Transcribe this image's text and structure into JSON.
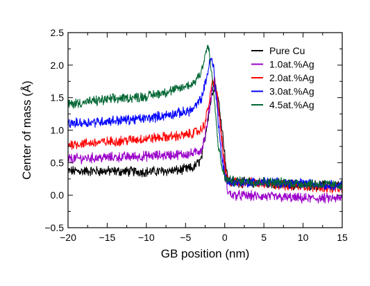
{
  "chart_data": {
    "type": "line",
    "xlabel": "GB position (nm)",
    "ylabel": "Center of mass (Å)",
    "xlim": [
      -20,
      15
    ],
    "ylim": [
      -0.5,
      2.5
    ],
    "x_ticks": [
      -20,
      -15,
      -10,
      -5,
      0,
      5,
      10,
      15
    ],
    "x_tick_labels": [
      "−20",
      "−15",
      "−10",
      "−5",
      "0",
      "5",
      "10",
      "15"
    ],
    "y_ticks": [
      -0.5,
      0.0,
      0.5,
      1.0,
      1.5,
      2.0,
      2.5
    ],
    "y_tick_labels": [
      "−0.5",
      "0.0",
      "0.5",
      "1.0",
      "1.5",
      "2.0",
      "2.5"
    ],
    "grid": false,
    "legend_position": "top-right",
    "series": [
      {
        "name": "Pure Cu",
        "color": "#000000",
        "x": [
          -20,
          -15,
          -10,
          -6,
          -4,
          -3,
          -2.5,
          -2,
          -1.5,
          -1.2,
          -0.8,
          -0.4,
          0,
          0.2,
          0.5,
          1,
          5,
          10,
          15
        ],
        "y": [
          0.37,
          0.37,
          0.36,
          0.38,
          0.42,
          0.55,
          0.9,
          1.3,
          1.62,
          1.7,
          1.45,
          1.1,
          0.65,
          0.38,
          0.22,
          0.2,
          0.19,
          0.15,
          0.15
        ]
      },
      {
        "name": "1.0at.%Ag",
        "color": "#9a00c9",
        "x": [
          -20,
          -15,
          -10,
          -5,
          -4,
          -3,
          -2.5,
          -2,
          -1.6,
          -1.3,
          -1,
          -0.6,
          -0.2,
          0.1,
          0.4,
          1,
          5,
          10,
          15
        ],
        "y": [
          0.56,
          0.58,
          0.6,
          0.63,
          0.64,
          0.7,
          0.9,
          1.3,
          1.65,
          1.72,
          1.5,
          1.1,
          0.6,
          0.25,
          0.05,
          0.0,
          -0.02,
          -0.05,
          -0.05
        ]
      },
      {
        "name": "2.0at.%Ag",
        "color": "#ff0000",
        "x": [
          -20,
          -15,
          -10,
          -5,
          -4,
          -3,
          -2.5,
          -2,
          -1.6,
          -1.3,
          -1,
          -0.6,
          -0.2,
          0.2,
          0.5,
          1,
          5,
          10,
          15
        ],
        "y": [
          0.78,
          0.82,
          0.87,
          0.92,
          0.96,
          1.0,
          1.12,
          1.42,
          1.72,
          1.78,
          1.55,
          1.15,
          0.65,
          0.3,
          0.22,
          0.2,
          0.18,
          0.14,
          0.1
        ]
      },
      {
        "name": "3.0at.%Ag",
        "color": "#0000ff",
        "x": [
          -20,
          -15,
          -10,
          -5,
          -4,
          -3,
          -2.5,
          -2,
          -1.7,
          -1.4,
          -1.1,
          -0.8,
          -0.4,
          0,
          0.4,
          1,
          5,
          10,
          15
        ],
        "y": [
          1.1,
          1.14,
          1.18,
          1.28,
          1.32,
          1.48,
          1.7,
          2.0,
          2.1,
          1.95,
          1.55,
          1.1,
          0.6,
          0.3,
          0.22,
          0.2,
          0.2,
          0.18,
          0.15
        ]
      },
      {
        "name": "4.5at.%Ag",
        "color": "#006633",
        "x": [
          -20,
          -15,
          -10,
          -6,
          -4,
          -3,
          -2.5,
          -2.2,
          -2,
          -1.7,
          -1.4,
          -1.1,
          -0.8,
          -0.4,
          0,
          0.4,
          1,
          5,
          10,
          15
        ],
        "y": [
          1.4,
          1.47,
          1.52,
          1.63,
          1.72,
          1.9,
          2.15,
          2.3,
          2.2,
          1.9,
          1.55,
          1.15,
          0.75,
          0.45,
          0.28,
          0.23,
          0.22,
          0.2,
          0.18,
          0.15
        ]
      }
    ]
  }
}
